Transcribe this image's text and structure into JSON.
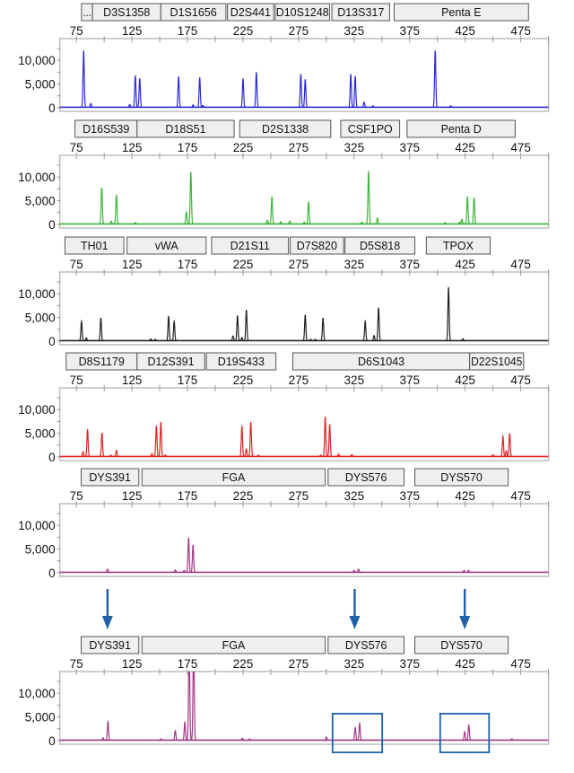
{
  "chart_data": [
    {
      "type": "line",
      "color": "#2b2bd6",
      "xlim": [
        60,
        500
      ],
      "ylim": [
        -400,
        14600
      ],
      "xticks": [
        75,
        125,
        175,
        225,
        275,
        325,
        375,
        425,
        475
      ],
      "yticks": [
        0,
        5000,
        10000
      ],
      "ytick_labels": [
        "0",
        "5,000",
        "10,000"
      ],
      "markers": [
        {
          "name": "...",
          "start": 79.6,
          "end": 89.5
        },
        {
          "name": "D3S1358",
          "start": 89.5,
          "end": 151
        },
        {
          "name": "D1S1656",
          "start": 151,
          "end": 209.6
        },
        {
          "name": "D2S441",
          "start": 211,
          "end": 252.6
        },
        {
          "name": "D10S1248",
          "start": 254,
          "end": 303
        },
        {
          "name": "D13S317",
          "start": 305,
          "end": 357
        },
        {
          "name": "Penta E",
          "start": 361,
          "end": 482
        }
      ],
      "peaks": [
        [
          81.5,
          12000
        ],
        [
          88,
          800
        ],
        [
          123,
          600
        ],
        [
          128,
          6700
        ],
        [
          132,
          6100
        ],
        [
          167,
          6500
        ],
        [
          180,
          500
        ],
        [
          186,
          6300
        ],
        [
          189,
          400
        ],
        [
          225,
          6100
        ],
        [
          237,
          7400
        ],
        [
          277,
          7000
        ],
        [
          281,
          5900
        ],
        [
          322,
          7000
        ],
        [
          326,
          6600
        ],
        [
          334,
          1100
        ],
        [
          342,
          300
        ],
        [
          398,
          12000
        ],
        [
          412,
          300
        ]
      ]
    },
    {
      "type": "line",
      "color": "#3cb43c",
      "xlim": [
        60,
        500
      ],
      "ylim": [
        -400,
        14600
      ],
      "xticks": [
        75,
        125,
        175,
        225,
        275,
        325,
        375,
        425,
        475
      ],
      "yticks": [
        0,
        5000,
        10000
      ],
      "ytick_labels": [
        "0",
        "5,000",
        "10,000"
      ],
      "markers": [
        {
          "name": "D16S539",
          "start": 73.7,
          "end": 129.6
        },
        {
          "name": "D18S51",
          "start": 129.6,
          "end": 217
        },
        {
          "name": "D2S1338",
          "start": 222,
          "end": 304
        },
        {
          "name": "CSF1PO",
          "start": 313,
          "end": 366
        },
        {
          "name": "Penta D",
          "start": 372.7,
          "end": 470
        }
      ],
      "peaks": [
        [
          97.8,
          7700
        ],
        [
          106.4,
          600
        ],
        [
          111,
          6200
        ],
        [
          128,
          300
        ],
        [
          174,
          2500
        ],
        [
          178,
          11000
        ],
        [
          247,
          800
        ],
        [
          251,
          5800
        ],
        [
          259,
          500
        ],
        [
          267,
          600
        ],
        [
          280,
          400
        ],
        [
          284,
          4700
        ],
        [
          332,
          400
        ],
        [
          338,
          11200
        ],
        [
          346,
          1300
        ],
        [
          407,
          300
        ],
        [
          420,
          400
        ],
        [
          422,
          1000
        ],
        [
          427,
          5800
        ],
        [
          433,
          5600
        ]
      ]
    },
    {
      "type": "line",
      "color": "#222222",
      "xlim": [
        60,
        500
      ],
      "ylim": [
        -400,
        14600
      ],
      "xticks": [
        75,
        125,
        175,
        225,
        275,
        325,
        375,
        425,
        475
      ],
      "yticks": [
        0,
        5000,
        10000
      ],
      "ytick_labels": [
        "0",
        "5,000",
        "10,000"
      ],
      "markers": [
        {
          "name": "TH01",
          "start": 64.7,
          "end": 117.7
        },
        {
          "name": "vWA",
          "start": 120.6,
          "end": 191.8
        },
        {
          "name": "D21S11",
          "start": 196.7,
          "end": 265.9
        },
        {
          "name": "D7S820",
          "start": 267.5,
          "end": 315.5
        },
        {
          "name": "D5S818",
          "start": 316.8,
          "end": 379.7
        },
        {
          "name": "TPOX",
          "start": 390,
          "end": 447.5
        }
      ],
      "peaks": [
        [
          79.6,
          4100
        ],
        [
          84,
          600
        ],
        [
          97,
          4800
        ],
        [
          142,
          400
        ],
        [
          146,
          300
        ],
        [
          158,
          5200
        ],
        [
          163,
          4100
        ],
        [
          216,
          1000
        ],
        [
          220,
          5300
        ],
        [
          224,
          700
        ],
        [
          228,
          6500
        ],
        [
          281,
          5500
        ],
        [
          286,
          300
        ],
        [
          290,
          300
        ],
        [
          297,
          4800
        ],
        [
          335,
          4100
        ],
        [
          343,
          1100
        ],
        [
          347,
          7000
        ],
        [
          410,
          11300
        ],
        [
          423,
          400
        ]
      ]
    },
    {
      "type": "line",
      "color": "#e02424",
      "xlim": [
        60,
        500
      ],
      "ylim": [
        -400,
        14600
      ],
      "xticks": [
        75,
        125,
        175,
        225,
        275,
        325,
        375,
        425,
        475
      ],
      "yticks": [
        0,
        5000,
        10000
      ],
      "ytick_labels": [
        "0",
        "5,000",
        "10,000"
      ],
      "markers": [
        {
          "name": "D8S1179",
          "start": 65.7,
          "end": 129.6
        },
        {
          "name": "D12S391",
          "start": 129.6,
          "end": 190.5
        },
        {
          "name": "D19S433",
          "start": 192,
          "end": 254.6
        },
        {
          "name": "D6S1043",
          "start": 269.8,
          "end": 429
        },
        {
          "name": "D22S1045",
          "start": 429,
          "end": 477.6
        }
      ],
      "peaks": [
        [
          81,
          1000
        ],
        [
          85,
          5800
        ],
        [
          98,
          5000
        ],
        [
          106,
          300
        ],
        [
          111,
          1300
        ],
        [
          143,
          600
        ],
        [
          147,
          6500
        ],
        [
          151,
          7300
        ],
        [
          155,
          300
        ],
        [
          224,
          6500
        ],
        [
          228,
          1600
        ],
        [
          232,
          7300
        ],
        [
          239,
          300
        ],
        [
          295,
          300
        ],
        [
          299,
          8400
        ],
        [
          303,
          6800
        ],
        [
          311,
          500
        ],
        [
          323,
          400
        ],
        [
          450,
          400
        ],
        [
          459,
          4300
        ],
        [
          462,
          1200
        ],
        [
          465,
          4900
        ]
      ]
    },
    {
      "type": "line",
      "color": "#a23a84",
      "xlim": [
        60,
        500
      ],
      "ylim": [
        -400,
        14600
      ],
      "xticks": [
        75,
        125,
        175,
        225,
        275,
        325,
        375,
        425,
        475
      ],
      "yticks": [
        0,
        5000,
        10000
      ],
      "ytick_labels": [
        "0",
        "5,000",
        "10,000"
      ],
      "markers": [
        {
          "name": "DYS391",
          "start": 79.3,
          "end": 131.2
        },
        {
          "name": "FGA",
          "start": 134,
          "end": 299
        },
        {
          "name": "DYS576",
          "start": 301.6,
          "end": 370
        },
        {
          "name": "DYS570",
          "start": 379.7,
          "end": 463.7
        }
      ],
      "peaks": [
        [
          103,
          700
        ],
        [
          164,
          500
        ],
        [
          172,
          400
        ],
        [
          176,
          7300
        ],
        [
          180,
          5800
        ],
        [
          325,
          400
        ],
        [
          329,
          700
        ],
        [
          424,
          400
        ],
        [
          428,
          400
        ]
      ]
    },
    {
      "type": "line",
      "color": "#a23a84",
      "xlim": [
        60,
        500
      ],
      "ylim": [
        -400,
        14600
      ],
      "xticks": [
        75,
        125,
        175,
        225,
        275,
        325,
        375,
        425,
        475
      ],
      "yticks": [
        0,
        5000,
        10000
      ],
      "ytick_labels": [
        "0",
        "5,000",
        "10,000"
      ],
      "markers": [
        {
          "name": "DYS391",
          "start": 79.3,
          "end": 131.2
        },
        {
          "name": "FGA",
          "start": 134,
          "end": 299
        },
        {
          "name": "DYS576",
          "start": 301.6,
          "end": 370
        },
        {
          "name": "DYS570",
          "start": 379.7,
          "end": 463.7
        }
      ],
      "peaks": [
        [
          99,
          500
        ],
        [
          103.4,
          3900
        ],
        [
          151,
          300
        ],
        [
          164,
          2000
        ],
        [
          172.6,
          3800
        ],
        [
          176.5,
          20000
        ],
        [
          180.5,
          20000
        ],
        [
          224.5,
          400
        ],
        [
          231,
          300
        ],
        [
          300,
          700
        ],
        [
          326,
          2700
        ],
        [
          330,
          3600
        ],
        [
          424.6,
          1800
        ],
        [
          428.3,
          3200
        ],
        [
          467,
          300
        ]
      ],
      "highlight_boxes": [
        {
          "x_range": [
            305.6,
            350.3
          ],
          "y_range": [
            -2500,
            5700
          ]
        },
        {
          "x_range": [
            402.5,
            446.5
          ],
          "y_range": [
            -2500,
            5700
          ]
        }
      ],
      "highlight_color": "#1f60a8"
    }
  ],
  "annotations": {
    "arrows": [
      103,
      325.5,
      424.6
    ],
    "arrow_color": "#1f60a8"
  }
}
